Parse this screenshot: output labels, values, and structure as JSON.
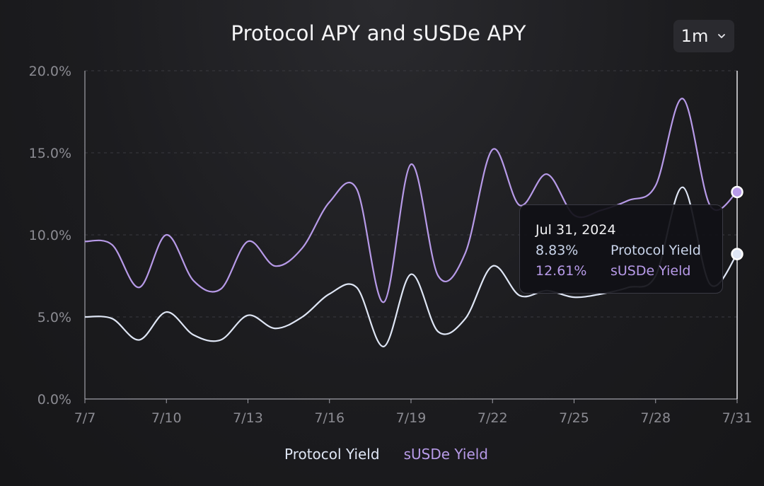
{
  "title": "Protocol APY and sUSDe APY",
  "range_selector": {
    "value": "1m",
    "icon": "chevron-down-icon"
  },
  "colors": {
    "protocol": "#dfe6f5",
    "susde": "#b79ae8",
    "grid": "#3a3a40",
    "axis": "#8b8b92"
  },
  "chart_data": {
    "type": "line",
    "title": "Protocol APY and sUSDe APY",
    "x": [
      "7/7",
      "7/8",
      "7/9",
      "7/10",
      "7/11",
      "7/12",
      "7/13",
      "7/14",
      "7/15",
      "7/16",
      "7/17",
      "7/18",
      "7/19",
      "7/20",
      "7/21",
      "7/22",
      "7/23",
      "7/24",
      "7/25",
      "7/26",
      "7/27",
      "7/28",
      "7/29",
      "7/30",
      "7/31"
    ],
    "x_ticks": [
      "7/7",
      "7/10",
      "7/13",
      "7/16",
      "7/19",
      "7/22",
      "7/25",
      "7/28",
      "7/31"
    ],
    "y_ticks": [
      "0.0%",
      "5.0%",
      "10.0%",
      "15.0%",
      "20.0%"
    ],
    "ylim": [
      0,
      20
    ],
    "grid": true,
    "legend_position": "bottom-center",
    "series": [
      {
        "name": "Protocol Yield",
        "color": "#dfe6f5",
        "values": [
          5.0,
          4.9,
          3.6,
          5.3,
          3.9,
          3.6,
          5.1,
          4.3,
          5.0,
          6.4,
          6.8,
          3.2,
          7.6,
          4.1,
          4.9,
          8.1,
          6.3,
          6.6,
          6.2,
          6.4,
          6.8,
          7.5,
          12.9,
          7.0,
          8.83
        ]
      },
      {
        "name": "sUSDe Yield",
        "color": "#b79ae8",
        "values": [
          9.6,
          9.4,
          6.8,
          10.0,
          7.2,
          6.7,
          9.6,
          8.1,
          9.2,
          12.0,
          12.8,
          5.9,
          14.3,
          7.5,
          8.9,
          15.2,
          11.8,
          13.7,
          11.2,
          11.5,
          12.1,
          13.0,
          18.3,
          11.8,
          12.61
        ]
      }
    ],
    "tooltip": {
      "date": "Jul 31, 2024",
      "rows": [
        {
          "value": "8.83%",
          "label": "Protocol Yield"
        },
        {
          "value": "12.61%",
          "label": "sUSDe Yield"
        }
      ]
    }
  },
  "legend": [
    {
      "label": "Protocol Yield"
    },
    {
      "label": "sUSDe Yield"
    }
  ]
}
